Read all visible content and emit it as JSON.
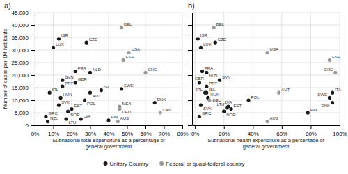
{
  "chart_data": [
    {
      "type": "scatter",
      "title": "a)",
      "xlabel": "Subnational total expenditure as a percentage of\ngeneral government",
      "ylabel": "Number of cases per 1M habitants",
      "xlim": [
        0,
        80
      ],
      "ylim": [
        0,
        45000
      ],
      "xticks": [
        {
          "value": 0,
          "label": "0%"
        },
        {
          "value": 10,
          "label": "10%"
        },
        {
          "value": 20,
          "label": "20%"
        },
        {
          "value": 30,
          "label": "30%"
        },
        {
          "value": 40,
          "label": "40%"
        },
        {
          "value": 50,
          "label": "50%"
        },
        {
          "value": 60,
          "label": "60%"
        },
        {
          "value": 70,
          "label": "70%"
        },
        {
          "value": 80,
          "label": "80%"
        }
      ],
      "yticks": [
        0,
        {
          "value": 5000,
          "label": "5,000"
        },
        {
          "value": 10000,
          "label": "10,000"
        },
        {
          "value": 15000,
          "label": "15,000"
        },
        {
          "value": 20000,
          "label": "20,000"
        },
        {
          "value": 25000,
          "label": "25,000"
        },
        {
          "value": 30000,
          "label": "30,000"
        },
        {
          "value": 35000,
          "label": "35,000"
        },
        {
          "value": 40000,
          "label": "40,000"
        },
        {
          "value": 45000,
          "label": "45,000"
        }
      ],
      "grid": true,
      "legend": "bottom",
      "series": [
        {
          "name": "Unitary Country",
          "color": "#1a1a1a",
          "labels": [
            "ISR",
            "LUX",
            "CZE",
            "FRA",
            "NLD",
            "SVN",
            "PRT",
            "GBR",
            "IRL",
            "HUN",
            "SVK",
            "EST",
            "NOR",
            "NZL",
            "LTU",
            "LVA",
            "FIN",
            "ISL",
            "AUT",
            "POL",
            "GRC",
            "DNK",
            "SWE"
          ],
          "x": [
            13,
            10,
            28,
            22,
            30,
            15,
            15,
            22,
            8,
            14,
            13,
            20,
            18,
            7,
            17,
            25,
            40,
            36,
            30,
            27,
            6,
            65,
            47
          ],
          "values": [
            34500,
            31000,
            33000,
            21500,
            21000,
            18000,
            15500,
            17000,
            13000,
            11000,
            8000,
            6500,
            5500,
            1500,
            2500,
            2500,
            2000,
            14000,
            13000,
            10000,
            3500,
            9000,
            14500
          ]
        },
        {
          "name": "Federal or quasi-federal country",
          "color": "#999999",
          "labels": [
            "BEL",
            "USA",
            "ESP",
            "CHE",
            "MEX",
            "DEU",
            "AUS",
            "CAN"
          ],
          "x": [
            47,
            51,
            48,
            60,
            46,
            46,
            45,
            68
          ],
          "values": [
            39000,
            29000,
            26000,
            21000,
            7500,
            6500,
            1500,
            5000
          ]
        }
      ]
    },
    {
      "type": "scatter",
      "title": "b)",
      "xlabel": "Subnational health expenditure as a percentage of\ngeneral government",
      "xlim": [
        -2,
        100
      ],
      "ylim": [
        0,
        45000
      ],
      "xticks": [
        {
          "value": 0,
          "label": "0%"
        },
        {
          "value": 20,
          "label": "20%"
        },
        {
          "value": 40,
          "label": "40%"
        },
        {
          "value": 60,
          "label": "60%"
        },
        {
          "value": 80,
          "label": "80%"
        },
        {
          "value": 100,
          "label": "100%"
        }
      ],
      "yticks": [
        0,
        5000,
        10000,
        15000,
        20000,
        25000,
        30000,
        35000,
        40000,
        45000
      ],
      "tick_labels": "x",
      "grid": true,
      "series": [
        {
          "color": "#1a1a1a",
          "labels": [
            "ISR",
            "LUX",
            "CZE",
            "FRA",
            "NLD",
            "SVN",
            "PRT",
            "GBR",
            "IRL",
            "HUN",
            "SVK",
            "EST",
            "NOR",
            "GRC",
            "LTU",
            "LVA",
            "ISL",
            "POL",
            "SWE",
            "ITA",
            "DNK",
            "FIN"
          ],
          "x": [
            2,
            4,
            14,
            5,
            8,
            17,
            8,
            3,
            7,
            9,
            4,
            25,
            20,
            3,
            22,
            23,
            8,
            37,
            93,
            95,
            95,
            78
          ],
          "values": [
            34500,
            31000,
            33000,
            21500,
            21000,
            18000,
            15500,
            17000,
            13000,
            11000,
            8000,
            6500,
            5500,
            3500,
            7000,
            7500,
            13000,
            10000,
            11000,
            13000,
            9000,
            5000
          ]
        },
        {
          "color": "#999999",
          "labels": [
            "BEL",
            "USA",
            "ESP",
            "CHE",
            "AUT",
            "DEU",
            "AUS"
          ],
          "x": [
            13,
            50,
            93,
            97,
            58,
            10,
            50
          ],
          "values": [
            39000,
            29000,
            26000,
            21000,
            13000,
            10000,
            1500
          ]
        }
      ]
    }
  ]
}
